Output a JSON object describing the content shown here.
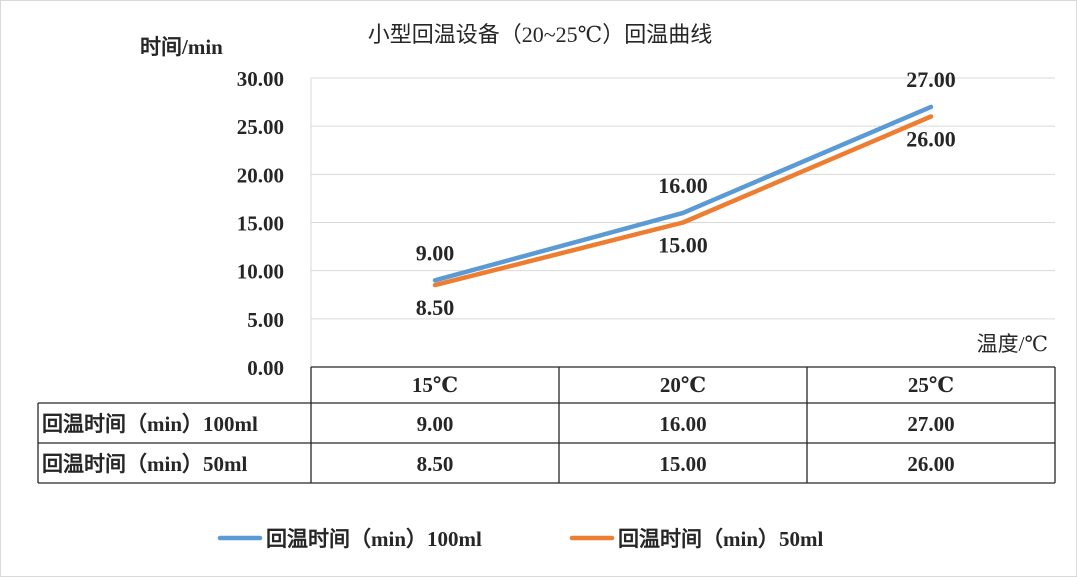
{
  "chart_data": {
    "type": "line",
    "title": "小型回温设备（20~25℃）回温曲线",
    "ylabel": "时间/min",
    "xlabel": "温度/℃",
    "categories": [
      "15℃",
      "20℃",
      "25℃"
    ],
    "ylim": [
      0,
      30
    ],
    "ytick_step": 5,
    "ytick_labels": [
      "0.00",
      "5.00",
      "10.00",
      "15.00",
      "20.00",
      "25.00",
      "30.00"
    ],
    "grid": true,
    "legend_position": "bottom",
    "data_table": true,
    "series": [
      {
        "name": "回温时间（min）100ml",
        "values": [
          9.0,
          16.0,
          27.0
        ],
        "labels": [
          "9.00",
          "16.00",
          "27.00"
        ],
        "color": "#5b9bd5",
        "label_position": "above"
      },
      {
        "name": "回温时间（min）50ml",
        "values": [
          8.5,
          15.0,
          26.0
        ],
        "labels": [
          "8.50",
          "15.00",
          "26.00"
        ],
        "color": "#ed7d31",
        "label_position": "below"
      }
    ]
  }
}
